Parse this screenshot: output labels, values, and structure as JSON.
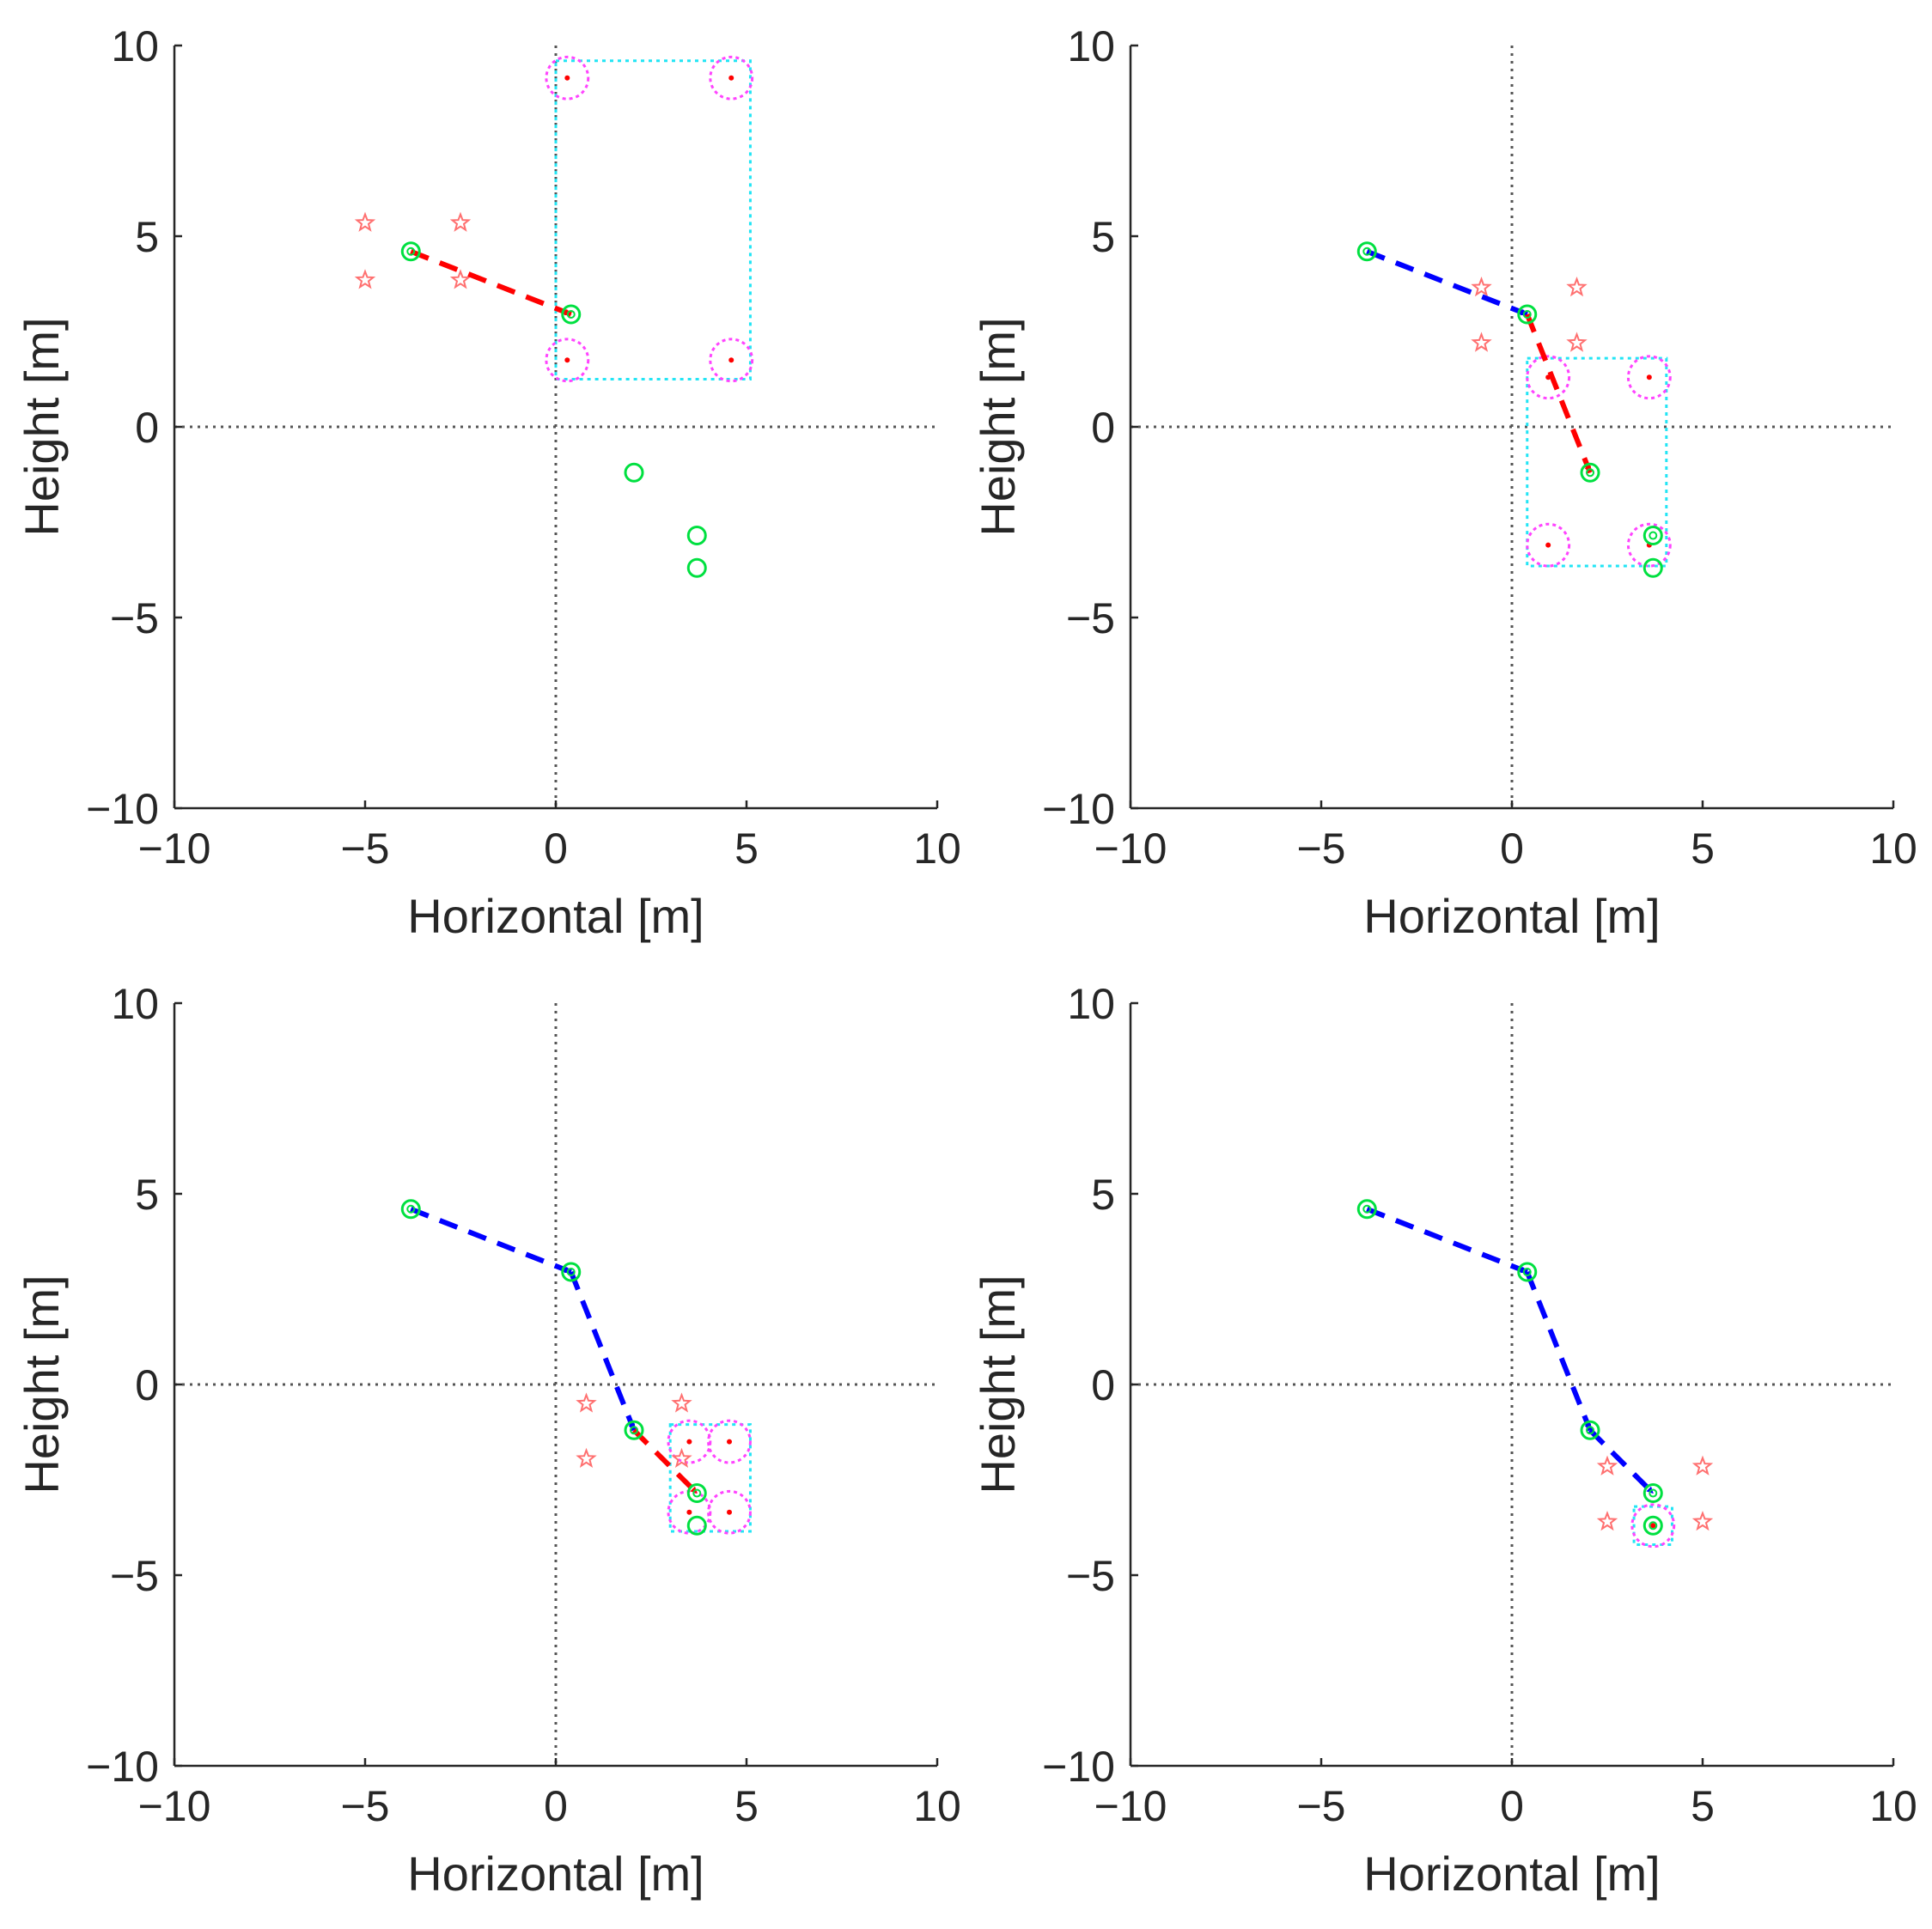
{
  "colors": {
    "axis": "#262626",
    "crosshair": "#555555",
    "waypoint": "#00e040",
    "star": "#ff7070",
    "dot": "#ff0000",
    "search_circle": "#ff44ff",
    "search_box": "#22e5f5",
    "current_move": "#ff0000",
    "past_move": "#0000ff"
  },
  "chart_data": [
    {
      "type": "scatter",
      "panel": "top-left",
      "xlabel": "Horizontal [m]",
      "ylabel": "Height [m]",
      "xlim": [
        -10,
        10
      ],
      "ylim": [
        -10,
        10
      ],
      "xticks": [
        "−10",
        "−5",
        "0",
        "5",
        "10"
      ],
      "yticks": [
        "−10",
        "−5",
        "0",
        "5",
        "10"
      ],
      "grid": false,
      "waypoints": [
        [
          -3.8,
          4.6
        ],
        [
          0.4,
          2.95
        ],
        [
          2.05,
          -1.2
        ],
        [
          3.7,
          -2.85
        ],
        [
          3.7,
          -3.7
        ]
      ],
      "visited": 2,
      "past_arrows": [],
      "current_arrow": [
        [
          -3.8,
          4.6
        ],
        [
          0.4,
          2.95
        ]
      ],
      "search_box": [
        0.0,
        1.25,
        5.1,
        9.6
      ],
      "search_circles": [
        [
          0.3,
          9.15
        ],
        [
          4.6,
          9.15
        ],
        [
          0.3,
          1.75
        ],
        [
          4.6,
          1.75
        ]
      ],
      "stars": [
        [
          -5.0,
          5.35
        ],
        [
          -2.5,
          5.35
        ],
        [
          -5.0,
          3.85
        ],
        [
          -2.5,
          3.85
        ]
      ]
    },
    {
      "type": "scatter",
      "panel": "top-right",
      "xlabel": "Horizontal [m]",
      "ylabel": "Height [m]",
      "xlim": [
        -10,
        10
      ],
      "ylim": [
        -10,
        10
      ],
      "xticks": [
        "−10",
        "−5",
        "0",
        "5",
        "10"
      ],
      "yticks": [
        "−10",
        "−5",
        "0",
        "5",
        "10"
      ],
      "grid": false,
      "waypoints": [
        [
          -3.8,
          4.6
        ],
        [
          0.4,
          2.95
        ],
        [
          2.05,
          -1.2
        ],
        [
          3.7,
          -2.85
        ],
        [
          3.7,
          -3.7
        ]
      ],
      "visited": 4,
      "past_arrows": [
        [
          [
            -3.8,
            4.6
          ],
          [
            0.4,
            2.95
          ]
        ]
      ],
      "current_arrow": [
        [
          0.4,
          2.95
        ],
        [
          2.05,
          -1.2
        ]
      ],
      "search_box": [
        0.4,
        -3.65,
        4.05,
        1.8
      ],
      "search_circles": [
        [
          0.95,
          1.3
        ],
        [
          3.6,
          1.3
        ],
        [
          0.95,
          -3.1
        ],
        [
          3.6,
          -3.1
        ]
      ],
      "stars": [
        [
          -0.8,
          3.65
        ],
        [
          1.7,
          3.65
        ],
        [
          -0.8,
          2.2
        ],
        [
          1.7,
          2.2
        ]
      ]
    },
    {
      "type": "scatter",
      "panel": "bottom-left",
      "xlabel": "Horizontal [m]",
      "ylabel": "Height [m]",
      "xlim": [
        -10,
        10
      ],
      "ylim": [
        -10,
        10
      ],
      "xticks": [
        "−10",
        "−5",
        "0",
        "5",
        "10"
      ],
      "yticks": [
        "−10",
        "−5",
        "0",
        "5",
        "10"
      ],
      "grid": false,
      "waypoints": [
        [
          -3.8,
          4.6
        ],
        [
          0.4,
          2.95
        ],
        [
          2.05,
          -1.2
        ],
        [
          3.7,
          -2.85
        ],
        [
          3.7,
          -3.7
        ]
      ],
      "visited": 4,
      "past_arrows": [
        [
          [
            -3.8,
            4.6
          ],
          [
            0.4,
            2.95
          ]
        ],
        [
          [
            0.4,
            2.95
          ],
          [
            2.05,
            -1.2
          ]
        ]
      ],
      "current_arrow": [
        [
          2.05,
          -1.2
        ],
        [
          3.7,
          -2.85
        ]
      ],
      "search_box": [
        3.0,
        -3.85,
        5.1,
        -1.05
      ],
      "search_circles": [
        [
          3.5,
          -1.5
        ],
        [
          4.55,
          -1.5
        ],
        [
          3.5,
          -3.35
        ],
        [
          4.55,
          -3.35
        ]
      ],
      "stars": [
        [
          0.8,
          -0.5
        ],
        [
          3.3,
          -0.5
        ],
        [
          0.8,
          -1.95
        ],
        [
          3.3,
          -1.95
        ]
      ]
    },
    {
      "type": "scatter",
      "panel": "bottom-right",
      "xlabel": "Horizontal [m]",
      "ylabel": "Height [m]",
      "xlim": [
        -10,
        10
      ],
      "ylim": [
        -10,
        10
      ],
      "xticks": [
        "−10",
        "−5",
        "0",
        "5",
        "10"
      ],
      "yticks": [
        "−10",
        "−5",
        "0",
        "5",
        "10"
      ],
      "grid": false,
      "waypoints": [
        [
          -3.8,
          4.6
        ],
        [
          0.4,
          2.95
        ],
        [
          2.05,
          -1.2
        ],
        [
          3.7,
          -2.85
        ],
        [
          3.7,
          -3.7
        ]
      ],
      "visited": 5,
      "past_arrows": [
        [
          [
            -3.8,
            4.6
          ],
          [
            0.4,
            2.95
          ]
        ],
        [
          [
            0.4,
            2.95
          ],
          [
            2.05,
            -1.2
          ]
        ],
        [
          [
            2.05,
            -1.2
          ],
          [
            3.7,
            -2.85
          ]
        ]
      ],
      "current_arrow": null,
      "search_box": [
        3.2,
        -4.2,
        4.2,
        -3.2
      ],
      "search_circles": [
        [
          3.7,
          -3.7
        ]
      ],
      "stars": [
        [
          2.5,
          -2.15
        ],
        [
          5.0,
          -2.15
        ],
        [
          2.5,
          -3.6
        ],
        [
          5.0,
          -3.6
        ]
      ]
    }
  ]
}
